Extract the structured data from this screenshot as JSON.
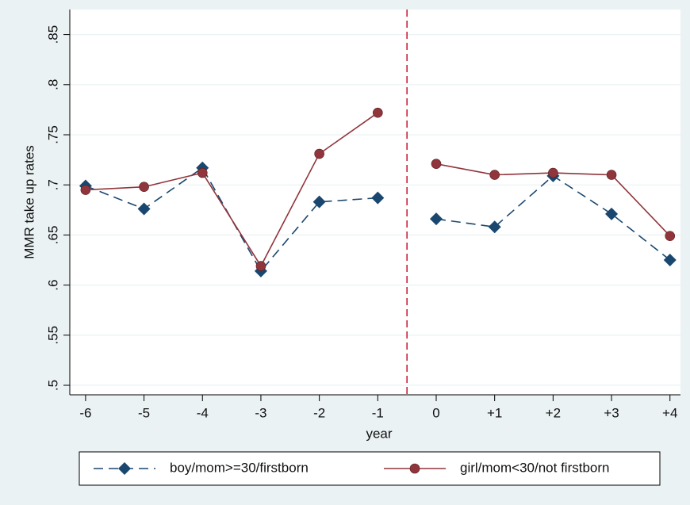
{
  "chart_data": {
    "type": "line",
    "x": [
      -6,
      -5,
      -4,
      -3,
      -2,
      -1,
      0,
      1,
      2,
      3,
      4
    ],
    "xlim": [
      -6.27,
      4.18
    ],
    "xticks": [
      -6,
      -5,
      -4,
      -3,
      -2,
      -1,
      0,
      {
        "value": 1,
        "label": "+1"
      },
      {
        "value": 2,
        "label": "+2"
      },
      {
        "value": 3,
        "label": "+3"
      },
      {
        "value": 4,
        "label": "+4"
      }
    ],
    "ylim": [
      0.4905,
      0.875
    ],
    "yticks": [
      {
        "value": 0.5,
        "label": ".5"
      },
      {
        "value": 0.55,
        "label": ".55"
      },
      {
        "value": 0.6,
        "label": ".6"
      },
      {
        "value": 0.65,
        "label": ".65"
      },
      {
        "value": 0.7,
        "label": ".7"
      },
      {
        "value": 0.75,
        "label": ".75"
      },
      {
        "value": 0.8,
        "label": ".8"
      },
      {
        "value": 0.85,
        "label": ".85"
      }
    ],
    "xlabel": "year",
    "ylabel": "MMR take up rates",
    "grid": true,
    "xline": {
      "value": -0.5,
      "color": "#c8102e"
    },
    "series": [
      {
        "name": "boy/mom>=30/firstborn",
        "color": "#1a476f",
        "line_style": "dashed",
        "marker": "diamond",
        "values": [
          0.699,
          0.676,
          0.717,
          0.614,
          0.683,
          0.687,
          0.666,
          0.658,
          0.709,
          0.671,
          0.625
        ]
      },
      {
        "name": "girl/mom<30/not firstborn",
        "color": "#90353b",
        "line_style": "solid",
        "marker": "circle",
        "values": [
          0.695,
          0.698,
          0.712,
          0.619,
          0.731,
          0.772,
          0.721,
          0.71,
          0.712,
          0.71,
          0.649
        ]
      }
    ]
  }
}
